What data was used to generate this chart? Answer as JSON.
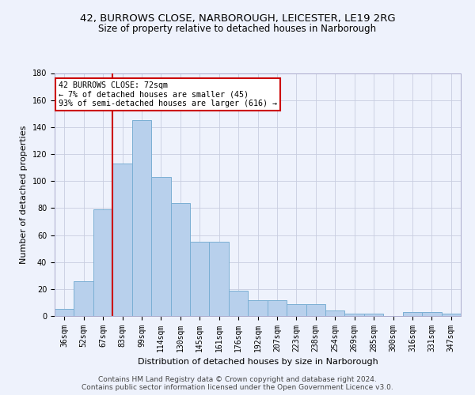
{
  "title1": "42, BURROWS CLOSE, NARBOROUGH, LEICESTER, LE19 2RG",
  "title2": "Size of property relative to detached houses in Narborough",
  "xlabel": "Distribution of detached houses by size in Narborough",
  "ylabel": "Number of detached properties",
  "bar_labels": [
    "36sqm",
    "52sqm",
    "67sqm",
    "83sqm",
    "99sqm",
    "114sqm",
    "130sqm",
    "145sqm",
    "161sqm",
    "176sqm",
    "192sqm",
    "207sqm",
    "223sqm",
    "238sqm",
    "254sqm",
    "269sqm",
    "285sqm",
    "300sqm",
    "316sqm",
    "331sqm",
    "347sqm"
  ],
  "bar_values": [
    5,
    26,
    79,
    113,
    145,
    103,
    84,
    55,
    55,
    19,
    12,
    12,
    9,
    9,
    4,
    2,
    2,
    0,
    3,
    3,
    2
  ],
  "bar_color": "#B8D0EC",
  "bar_edgecolor": "#7BAFD4",
  "vline_x": 2,
  "vline_color": "#CC0000",
  "annotation_text": "42 BURROWS CLOSE: 72sqm\n← 7% of detached houses are smaller (45)\n93% of semi-detached houses are larger (616) →",
  "annotation_box_edgecolor": "#CC0000",
  "annotation_box_facecolor": "white",
  "ylim": [
    0,
    180
  ],
  "yticks": [
    0,
    20,
    40,
    60,
    80,
    100,
    120,
    140,
    160,
    180
  ],
  "footer_line1": "Contains HM Land Registry data © Crown copyright and database right 2024.",
  "footer_line2": "Contains public sector information licensed under the Open Government Licence v3.0.",
  "bg_color": "#EEF2FC",
  "grid_color": "#C8CDE0",
  "title1_fontsize": 9.5,
  "title2_fontsize": 8.5,
  "xlabel_fontsize": 8,
  "ylabel_fontsize": 8,
  "tick_fontsize": 7,
  "n_bins": 21
}
